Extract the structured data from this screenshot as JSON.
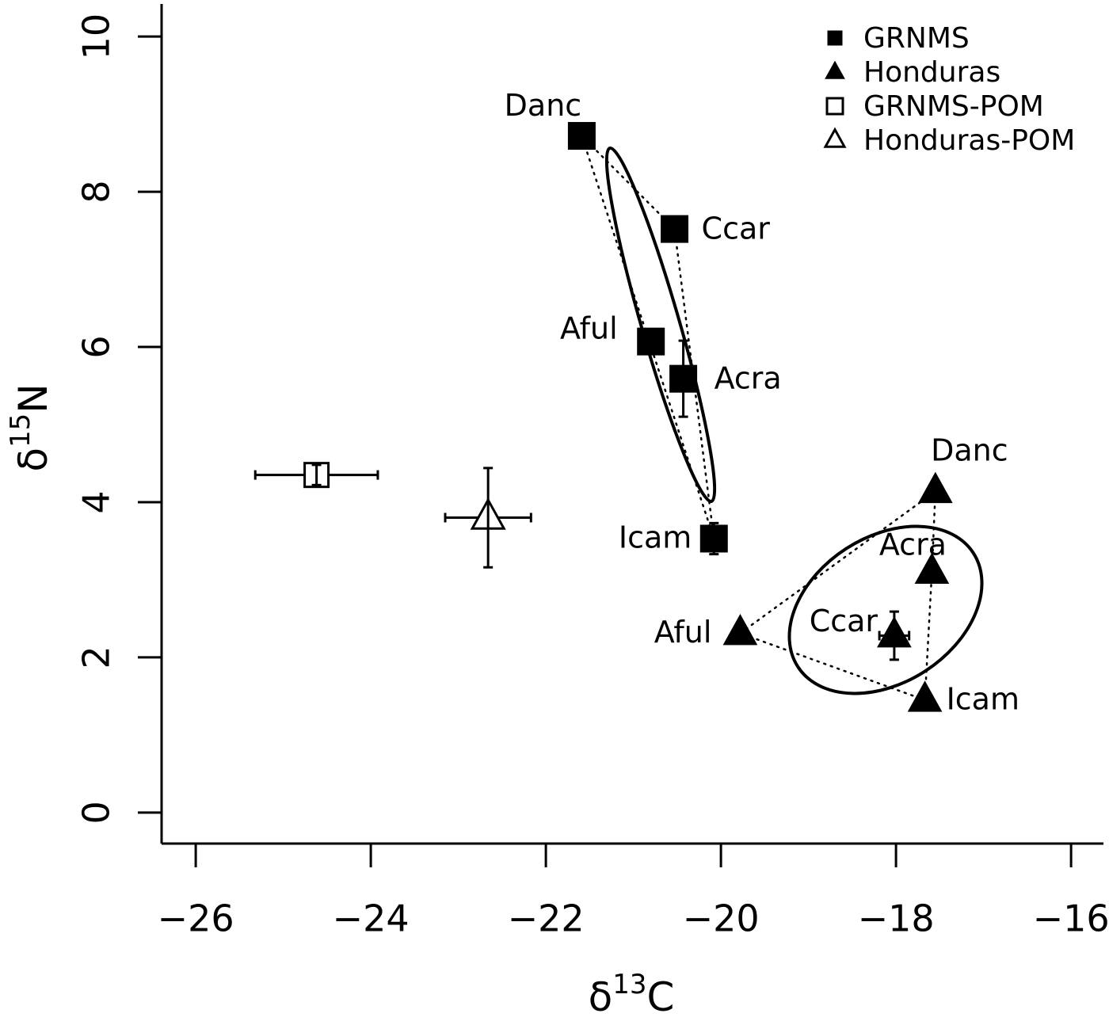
{
  "chart_data": {
    "type": "scatter",
    "x_label": [
      "δ",
      "13",
      "C"
    ],
    "y_label": [
      "δ",
      "15",
      "N"
    ],
    "xlim": [
      -26.39,
      -15.63
    ],
    "ylim": [
      -0.4,
      10.42
    ],
    "xticks": [
      {
        "value": -26,
        "label": "−26"
      },
      {
        "value": -24,
        "label": "−24"
      },
      {
        "value": -22,
        "label": "−22"
      },
      {
        "value": -20,
        "label": "−20"
      },
      {
        "value": -18,
        "label": "−18"
      },
      {
        "value": -16,
        "label": "−16"
      }
    ],
    "yticks": [
      0,
      2,
      4,
      6,
      8,
      10
    ],
    "legend": "top-right",
    "series": [
      {
        "name": "GRNMS",
        "color": "#000000",
        "marker": "square",
        "filled": true,
        "labels": [
          "Danc",
          "Ccar",
          "Aful",
          "Acra",
          "Icam"
        ],
        "x": [
          -21.59,
          -20.53,
          -20.8,
          -20.43,
          -20.08
        ],
        "y": [
          8.72,
          7.52,
          6.07,
          5.59,
          3.53
        ],
        "x_error": [
          null,
          null,
          null,
          null,
          null
        ],
        "y_error": [
          null,
          null,
          null,
          0.49,
          0.2
        ]
      },
      {
        "name": "Honduras",
        "color": "#000000",
        "marker": "triangle",
        "filled": true,
        "labels": [
          "Danc",
          "Acra",
          "Aful",
          "Ccar",
          "Icam"
        ],
        "x": [
          -17.55,
          -17.59,
          -19.78,
          -18.02,
          -17.67
        ],
        "y": [
          4.14,
          3.1,
          2.31,
          2.28,
          1.45
        ],
        "x_error": [
          null,
          null,
          null,
          0.17,
          null
        ],
        "y_error": [
          null,
          null,
          null,
          0.31,
          0.05
        ]
      },
      {
        "name": "GRNMS-POM",
        "color": "#000000",
        "marker": "square",
        "filled": false,
        "x": [
          -24.62
        ],
        "y": [
          4.35
        ],
        "x_error": [
          0.7
        ],
        "y_error": [
          0.13
        ]
      },
      {
        "name": "Honduras-POM",
        "color": "#000000",
        "marker": "triangle",
        "filled": false,
        "x": [
          -22.66
        ],
        "y": [
          3.8
        ],
        "x_error": [
          0.49
        ],
        "y_error": [
          0.64
        ]
      }
    ]
  }
}
